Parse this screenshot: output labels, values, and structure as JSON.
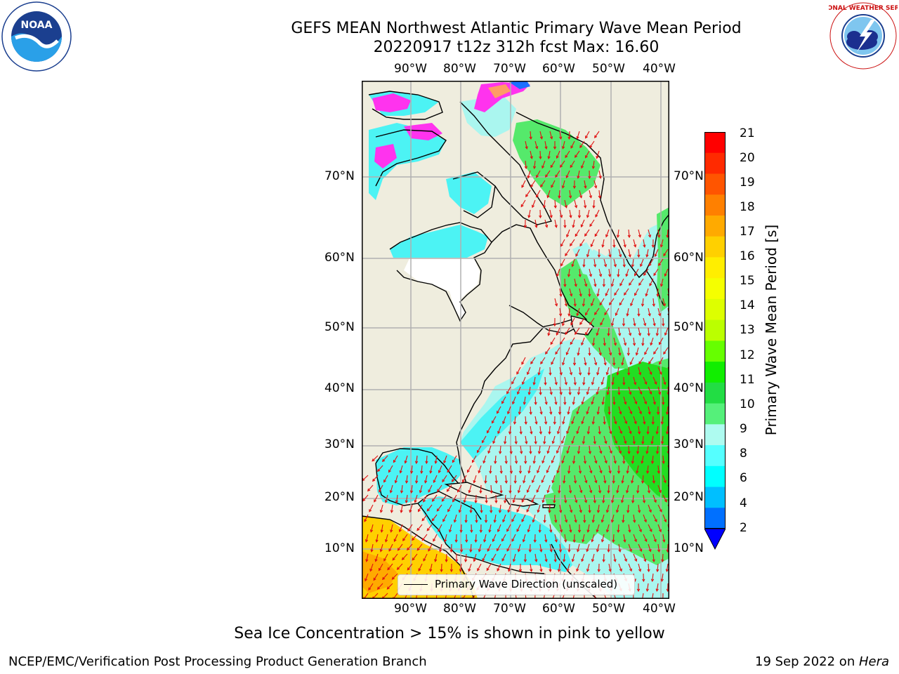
{
  "header": {
    "title_line1": "GEFS MEAN Northwest Atlantic Primary Wave Mean Period",
    "title_line2": "20220917 t12z 312h fcst   Max: 16.60"
  },
  "logos": {
    "noaa_text": "NOAA",
    "nws_text": "NATIONAL WEATHER SERVICE"
  },
  "map": {
    "lon_ticks": [
      "90°W",
      "80°W",
      "70°W",
      "60°W",
      "50°W",
      "40°W"
    ],
    "lat_ticks": [
      "70°N",
      "60°N",
      "50°N",
      "40°N",
      "30°N",
      "20°N",
      "10°N"
    ],
    "legend_label": "Primary Wave Direction (unscaled)",
    "colors": {
      "land": "#efedde",
      "ocean_cyan": "#4cf3f4",
      "ocean_lightcyan": "#aaf6ef",
      "ocean_green": "#55e96b",
      "ocean_brightgreen": "#22dd22",
      "arrows": "#e01010",
      "sea_ice_pink": "#ff33ee",
      "coast": "#000000",
      "grid": "#b0b0b0"
    }
  },
  "colorbar": {
    "label": "Primary Wave Mean Period [s]",
    "ticks": [
      "21",
      "20",
      "19",
      "18",
      "17",
      "16",
      "15",
      "14",
      "13",
      "12",
      "11",
      "10",
      "9",
      "8",
      "6",
      "4",
      "2"
    ],
    "colors": [
      "#ff0000",
      "#ff2a00",
      "#ff5500",
      "#ff8000",
      "#ffaa00",
      "#ffd000",
      "#ffee00",
      "#f5ff00",
      "#ddff00",
      "#bbff00",
      "#66ff00",
      "#11ee00",
      "#22dd44",
      "#55f07a",
      "#aefbf0",
      "#55ffff",
      "#00ffff",
      "#00bfff",
      "#0070ff"
    ],
    "extend_color": "#0000ff"
  },
  "caption": "Sea Ice Concentration > 15% is shown in pink to yellow",
  "footer": {
    "left": "NCEP/EMC/Verification Post Processing Product Generation Branch",
    "date": "19 Sep 2022 on ",
    "machine": "Hera"
  }
}
